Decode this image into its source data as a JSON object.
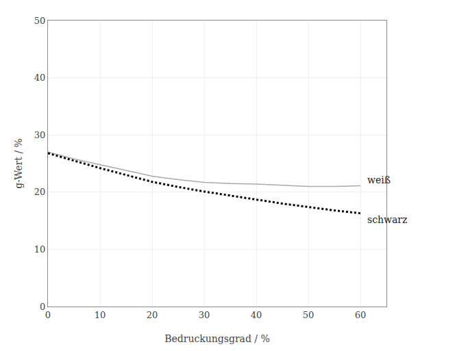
{
  "chart_data": {
    "type": "line",
    "xlabel": "Bedruckungsgrad / %",
    "ylabel": "g-Wert / %",
    "x": [
      0,
      5,
      10,
      15,
      20,
      25,
      30,
      35,
      40,
      45,
      50,
      55,
      60
    ],
    "series": [
      {
        "name": "weiß",
        "color": "#aaaaaa",
        "line_style": "solid",
        "values": [
          27.0,
          25.8,
          24.8,
          23.8,
          22.8,
          22.2,
          21.7,
          21.5,
          21.4,
          21.2,
          21.0,
          21.0,
          21.1
        ]
      },
      {
        "name": "schwarz",
        "color": "#000000",
        "line_style": "dotted",
        "values": [
          26.8,
          25.5,
          24.2,
          23.0,
          21.8,
          20.9,
          20.1,
          19.4,
          18.7,
          18.0,
          17.4,
          16.8,
          16.3
        ]
      }
    ],
    "xlim": [
      0,
      65
    ],
    "ylim": [
      0,
      50
    ],
    "xticks": [
      0,
      10,
      20,
      30,
      40,
      50,
      60
    ],
    "yticks": [
      0,
      10,
      20,
      30,
      40,
      50
    ],
    "grid": true
  }
}
